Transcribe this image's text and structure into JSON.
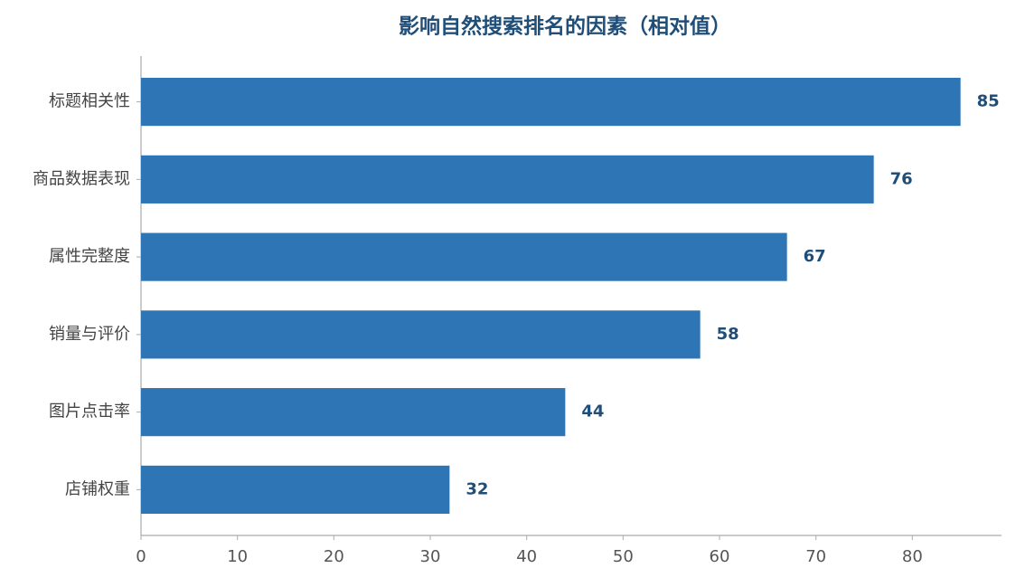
{
  "chart_data": {
    "type": "barh",
    "title": "影响自然搜索排名的因素（相对值）",
    "categories": [
      "标题相关性",
      "商品数据表现",
      "属性完整度",
      "销量与评价",
      "图片点击率",
      "店铺权重"
    ],
    "values": [
      85,
      76,
      67,
      58,
      44,
      32
    ],
    "color": "#2e75b6",
    "xlim": [
      0,
      89.25
    ],
    "xticks": [
      0,
      10,
      20,
      30,
      40,
      50,
      60,
      70,
      80
    ]
  }
}
